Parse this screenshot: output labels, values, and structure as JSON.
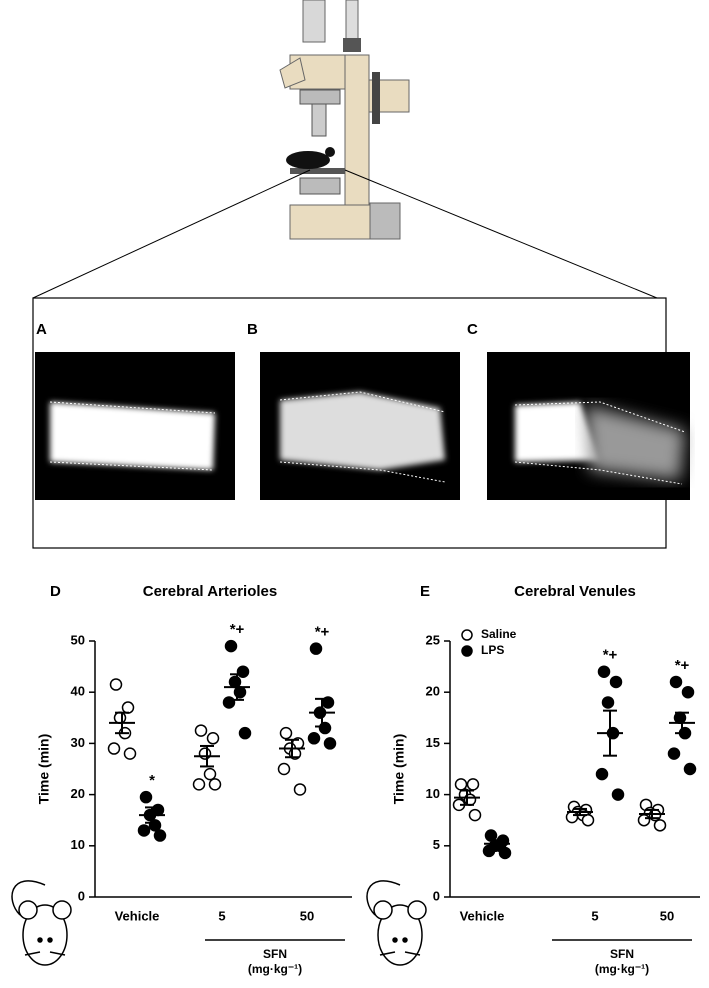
{
  "panel_labels": [
    "A",
    "B",
    "C"
  ],
  "chart_data": [
    {
      "type": "dot",
      "panel": "D",
      "title": "Cerebral Arterioles",
      "y_label": "Time (min)",
      "categories": [
        "Vehicle",
        "5",
        "50"
      ],
      "group_label": "SFN",
      "group_unit": "(mg·kg⁻¹)",
      "ylim": [
        0,
        50
      ],
      "yticks": [
        0,
        10,
        20,
        30,
        40,
        50
      ],
      "series": [
        {
          "name": "Saline",
          "marker": "open",
          "color": "#000000",
          "values": [
            [
              41.5,
              37,
              35,
              32,
              29,
              28
            ],
            [
              32.5,
              31,
              28,
              24,
              22,
              22
            ],
            [
              32,
              30,
              29,
              28,
              25,
              21
            ]
          ],
          "mean": [
            34,
            27.5,
            29
          ],
          "sem": [
            2,
            2,
            1.7
          ]
        },
        {
          "name": "LPS",
          "marker": "filled",
          "color": "#000000",
          "values": [
            [
              19.5,
              17,
              16,
              14,
              13,
              12
            ],
            [
              49,
              44,
              42,
              40,
              38,
              32
            ],
            [
              48.5,
              38,
              36,
              33,
              31,
              30
            ]
          ],
          "mean": [
            16,
            41,
            36
          ],
          "sem": [
            1.5,
            2.5,
            2.7
          ],
          "annotations": [
            "*",
            "*+",
            "*+"
          ]
        }
      ]
    },
    {
      "type": "dot",
      "panel": "E",
      "title": "Cerebral Venules",
      "y_label": "Time (min)",
      "categories": [
        "Vehicle",
        "5",
        "50"
      ],
      "group_label": "SFN",
      "group_unit": "(mg·kg⁻¹)",
      "ylim": [
        0,
        25
      ],
      "yticks": [
        0,
        5,
        10,
        15,
        20,
        25
      ],
      "legend": "top-left",
      "series": [
        {
          "name": "Saline",
          "marker": "open",
          "color": "#000000",
          "values": [
            [
              11,
              11,
              10,
              9.5,
              9,
              8
            ],
            [
              8.8,
              8.5,
              8.3,
              8,
              7.8,
              7.5
            ],
            [
              9,
              8.5,
              8.2,
              8,
              7.5,
              7
            ]
          ],
          "mean": [
            9.7,
            8.3,
            8.1
          ],
          "sem": [
            0.7,
            0.3,
            0.4
          ]
        },
        {
          "name": "LPS",
          "marker": "filled",
          "color": "#000000",
          "values": [
            [
              6,
              5.5,
              5,
              5,
              4.5,
              4.3
            ],
            [
              22,
              21,
              19,
              16,
              12,
              10
            ],
            [
              21,
              20,
              17.5,
              16,
              14,
              12.5
            ]
          ],
          "mean": [
            5.2,
            16,
            17
          ],
          "sem": [
            0.35,
            2.2,
            1
          ],
          "annotations": [
            null,
            "*+",
            "*+"
          ]
        }
      ]
    }
  ]
}
